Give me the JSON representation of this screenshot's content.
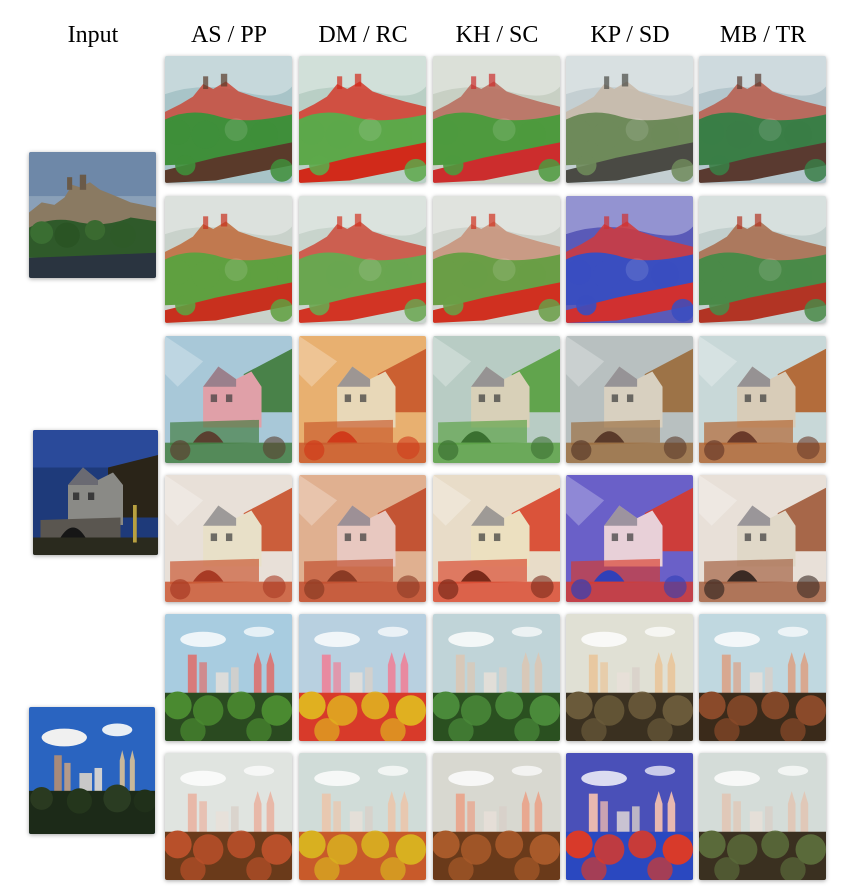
{
  "header": {
    "input_label": "Input",
    "columns": [
      {
        "label": "AS / PP"
      },
      {
        "label": "DM / RC"
      },
      {
        "label": "KH / SC"
      },
      {
        "label": "KP / SD"
      },
      {
        "label": "MB / TR"
      }
    ]
  },
  "inputs": [
    {
      "scene": "hilltop-town"
    },
    {
      "scene": "stone-mill"
    },
    {
      "scene": "city-skyline"
    }
  ],
  "styles": [
    {
      "sky": "#a8c4c8",
      "accent": "#c94a3a",
      "fg": "#3f8f3a",
      "water": "#5a3a2a"
    },
    {
      "sky": "#b9cfc5",
      "accent": "#d43a2a",
      "fg": "#5da84a",
      "water": "#d12a1a"
    },
    {
      "sky": "#c8d0c4",
      "accent": "#b86a5a",
      "fg": "#4e9a3e",
      "water": "#cc2d2d"
    },
    {
      "sky": "#c4cfd2",
      "accent": "#c8b8a8",
      "fg": "#6e8a5a",
      "water": "#4a4a44"
    },
    {
      "sky": "#b4c6cc",
      "accent": "#b85a4a",
      "fg": "#3a7e46",
      "water": "#5a3a30"
    },
    {
      "sky": "#c9d2cb",
      "accent": "#c06a3a",
      "fg": "#5fa040",
      "water": "#c8301e"
    },
    {
      "sky": "#c8d4cc",
      "accent": "#cc4a3a",
      "fg": "#6aa650",
      "water": "#d23424"
    },
    {
      "sky": "#cfd4cd",
      "accent": "#c89078",
      "fg": "#6a9e46",
      "water": "#d03020"
    },
    {
      "sky": "#5a5ab8",
      "accent": "#d23a3a",
      "fg": "#3a4ec0",
      "water": "#d03030"
    },
    {
      "sky": "#c2cfcd",
      "accent": "#a86a4a",
      "fg": "#4a8a48",
      "water": "#b23424"
    },
    {
      "sky": "#a8c8d8",
      "accent": "#e0a0a8",
      "fg": "#3e7a3a",
      "water": "#5a4030"
    },
    {
      "sky": "#e8b070",
      "accent": "#e8d8b8",
      "fg": "#c8582a",
      "water": "#d03a1a"
    },
    {
      "sky": "#b8ccc4",
      "accent": "#d8d0b8",
      "fg": "#58a040",
      "water": "#3a7030"
    },
    {
      "sky": "#b8c0c0",
      "accent": "#d8d0c0",
      "fg": "#9a6a3a",
      "water": "#5a3a2a"
    },
    {
      "sky": "#c8d8d8",
      "accent": "#d8ccb8",
      "fg": "#b0602a",
      "water": "#6a3a2a"
    },
    {
      "sky": "#e8e0d8",
      "accent": "#e8e0c8",
      "fg": "#c8502a",
      "water": "#a83a24"
    },
    {
      "sky": "#e0b090",
      "accent": "#e8c8c0",
      "fg": "#c04a2a",
      "water": "#8a3a24"
    },
    {
      "sky": "#e8dcc8",
      "accent": "#ece0c0",
      "fg": "#d8442a",
      "water": "#7a2a1a"
    },
    {
      "sky": "#6a60c8",
      "accent": "#e8d0d8",
      "fg": "#d83a2a",
      "water": "#3040b8"
    },
    {
      "sky": "#e8e0d8",
      "accent": "#e0d8c8",
      "fg": "#a05a3a",
      "water": "#3a2a24"
    },
    {
      "sky": "#a8cce0",
      "accent": "#d87a7a",
      "fg": "#4a8a30",
      "water": "#2a4a20"
    },
    {
      "sky": "#b8d0e0",
      "accent": "#e88aa0",
      "fg": "#e0b020",
      "water": "#d83a2a"
    },
    {
      "sky": "#c0d4d8",
      "accent": "#d8c8b8",
      "fg": "#4a8a3a",
      "water": "#2a5020"
    },
    {
      "sky": "#e0e0d4",
      "accent": "#e8c8a0",
      "fg": "#6a5a3a",
      "water": "#3a3020"
    },
    {
      "sky": "#c0d8e0",
      "accent": "#d8a890",
      "fg": "#8a4a2a",
      "water": "#3a2a1a"
    },
    {
      "sky": "#e0e4e0",
      "accent": "#e8b8a8",
      "fg": "#b8502a",
      "water": "#6a3a1a"
    },
    {
      "sky": "#d0dcd8",
      "accent": "#e8c8b0",
      "fg": "#d8b020",
      "water": "#c85a2a"
    },
    {
      "sky": "#d8d8d0",
      "accent": "#e8a890",
      "fg": "#a85a2a",
      "water": "#6a3a1a"
    },
    {
      "sky": "#4a50b8",
      "accent": "#e8b8b0",
      "fg": "#d83a2a",
      "water": "#2a48c0"
    },
    {
      "sky": "#d4dcd8",
      "accent": "#e0c8b8",
      "fg": "#5a6a3a",
      "water": "#3a3020"
    }
  ]
}
